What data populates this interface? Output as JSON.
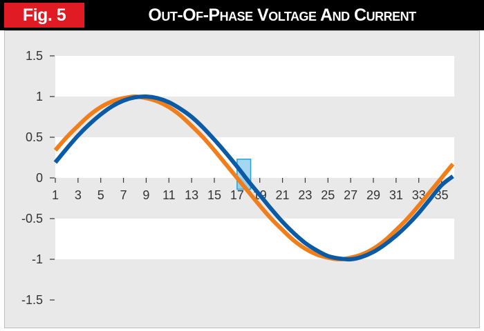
{
  "header": {
    "fig_label": "Fig. 5",
    "title": "Out-Of-Phase Voltage And Current"
  },
  "colors": {
    "header_bg": "#000000",
    "fig_label_bg": "#e01b24",
    "panel_bg": "#e9e9e9",
    "band": "#ffffff",
    "voltage_series": "#f07f1b",
    "current_series": "#0a5aa6",
    "highlight": "#5ab7e6"
  },
  "chart_data": {
    "type": "line",
    "title": "Out-Of-Phase Voltage And Current",
    "xlabel": "",
    "ylabel": "",
    "x_tick_labels": [
      "1",
      "3",
      "5",
      "7",
      "9",
      "11",
      "13",
      "15",
      "17",
      "19",
      "21",
      "23",
      "25",
      "27",
      "29",
      "31",
      "33",
      "35"
    ],
    "y_tick_labels": [
      "1.5",
      "1",
      "0.5",
      "0",
      "-0.5",
      "-1",
      "-1.5"
    ],
    "xlim": [
      1,
      36
    ],
    "ylim": [
      -1.5,
      1.5
    ],
    "grid": "alternating horizontal bands",
    "legend": "none",
    "series": [
      {
        "color": "#f07f1b",
        "x": [
          1,
          2,
          3,
          4,
          5,
          6,
          7,
          8,
          9,
          10,
          11,
          12,
          13,
          14,
          15,
          16,
          17,
          18,
          19,
          20,
          21,
          22,
          23,
          24,
          25,
          26,
          27,
          28,
          29,
          30,
          31,
          32,
          33,
          34,
          35,
          36
        ],
        "values": [
          0.34,
          0.5,
          0.64,
          0.77,
          0.87,
          0.94,
          0.98,
          1.0,
          0.98,
          0.94,
          0.87,
          0.77,
          0.64,
          0.5,
          0.34,
          0.17,
          0.0,
          -0.17,
          -0.34,
          -0.5,
          -0.64,
          -0.77,
          -0.87,
          -0.94,
          -0.98,
          -1.0,
          -0.98,
          -0.94,
          -0.87,
          -0.77,
          -0.64,
          -0.5,
          -0.34,
          -0.17,
          0.0,
          0.17
        ]
      },
      {
        "color": "#0a5aa6",
        "x": [
          1,
          2,
          3,
          4,
          5,
          6,
          7,
          8,
          9,
          10,
          11,
          12,
          13,
          14,
          15,
          16,
          17,
          18,
          19,
          20,
          21,
          22,
          23,
          24,
          25,
          26,
          27,
          28,
          29,
          30,
          31,
          32,
          33,
          34,
          35,
          36
        ],
        "values": [
          0.19,
          0.36,
          0.52,
          0.66,
          0.78,
          0.88,
          0.95,
          0.99,
          1.0,
          0.98,
          0.93,
          0.85,
          0.75,
          0.62,
          0.47,
          0.31,
          0.14,
          -0.04,
          -0.21,
          -0.38,
          -0.54,
          -0.68,
          -0.8,
          -0.89,
          -0.96,
          -0.99,
          -1.0,
          -0.97,
          -0.91,
          -0.82,
          -0.71,
          -0.58,
          -0.43,
          -0.26,
          -0.09,
          0.02
        ]
      }
    ],
    "highlight_region": {
      "x": [
        17,
        18.2
      ],
      "y": [
        -0.14,
        0.23
      ]
    }
  }
}
